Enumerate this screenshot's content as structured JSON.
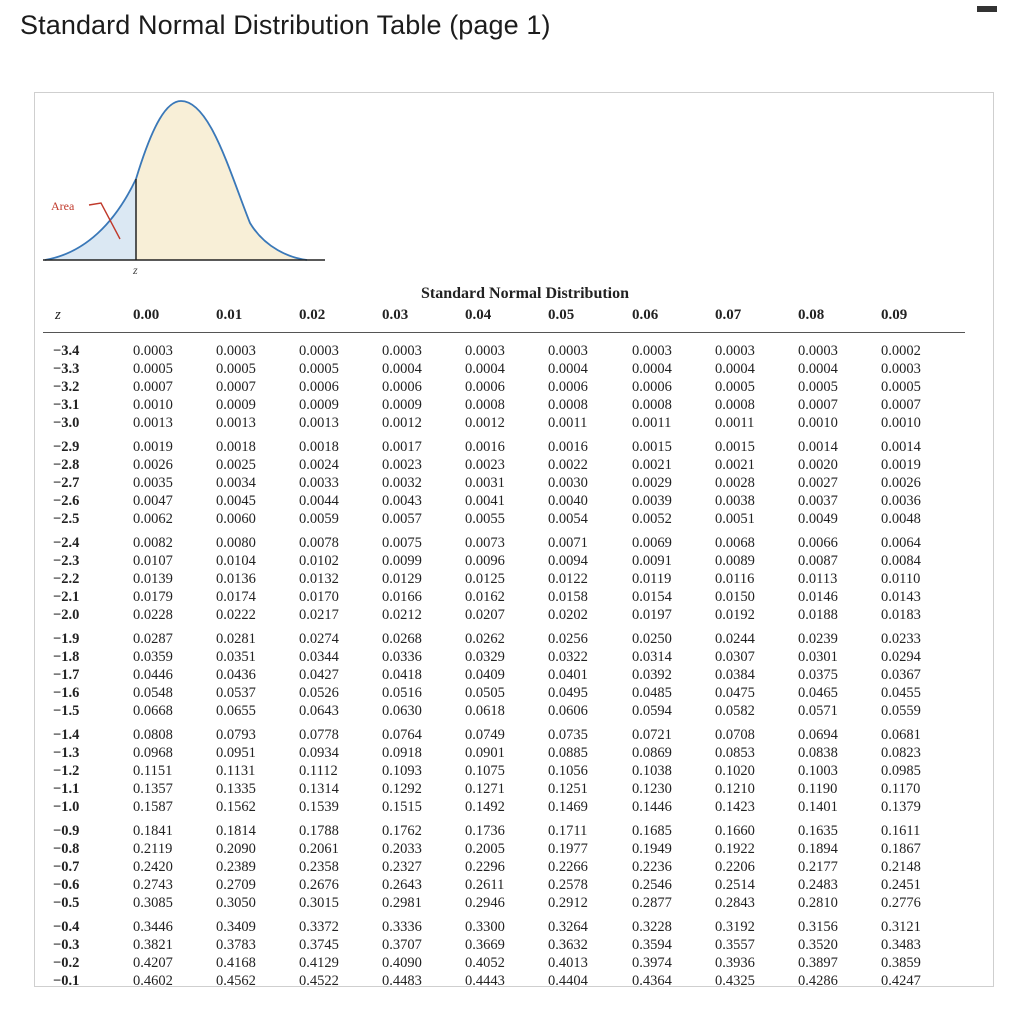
{
  "page": {
    "title": "Standard Normal Distribution Table (page 1)"
  },
  "figure": {
    "area_label": "Area",
    "z_label": "z"
  },
  "table": {
    "heading": "Standard Normal Distribution",
    "z_header": "z",
    "columns": [
      "0.00",
      "0.01",
      "0.02",
      "0.03",
      "0.04",
      "0.05",
      "0.06",
      "0.07",
      "0.08",
      "0.09"
    ],
    "groups": [
      [
        {
          "z": "−3.4",
          "p": [
            "0.0003",
            "0.0003",
            "0.0003",
            "0.0003",
            "0.0003",
            "0.0003",
            "0.0003",
            "0.0003",
            "0.0003",
            "0.0002"
          ]
        },
        {
          "z": "−3.3",
          "p": [
            "0.0005",
            "0.0005",
            "0.0005",
            "0.0004",
            "0.0004",
            "0.0004",
            "0.0004",
            "0.0004",
            "0.0004",
            "0.0003"
          ]
        },
        {
          "z": "−3.2",
          "p": [
            "0.0007",
            "0.0007",
            "0.0006",
            "0.0006",
            "0.0006",
            "0.0006",
            "0.0006",
            "0.0005",
            "0.0005",
            "0.0005"
          ]
        },
        {
          "z": "−3.1",
          "p": [
            "0.0010",
            "0.0009",
            "0.0009",
            "0.0009",
            "0.0008",
            "0.0008",
            "0.0008",
            "0.0008",
            "0.0007",
            "0.0007"
          ]
        },
        {
          "z": "−3.0",
          "p": [
            "0.0013",
            "0.0013",
            "0.0013",
            "0.0012",
            "0.0012",
            "0.0011",
            "0.0011",
            "0.0011",
            "0.0010",
            "0.0010"
          ]
        }
      ],
      [
        {
          "z": "−2.9",
          "p": [
            "0.0019",
            "0.0018",
            "0.0018",
            "0.0017",
            "0.0016",
            "0.0016",
            "0.0015",
            "0.0015",
            "0.0014",
            "0.0014"
          ]
        },
        {
          "z": "−2.8",
          "p": [
            "0.0026",
            "0.0025",
            "0.0024",
            "0.0023",
            "0.0023",
            "0.0022",
            "0.0021",
            "0.0021",
            "0.0020",
            "0.0019"
          ]
        },
        {
          "z": "−2.7",
          "p": [
            "0.0035",
            "0.0034",
            "0.0033",
            "0.0032",
            "0.0031",
            "0.0030",
            "0.0029",
            "0.0028",
            "0.0027",
            "0.0026"
          ]
        },
        {
          "z": "−2.6",
          "p": [
            "0.0047",
            "0.0045",
            "0.0044",
            "0.0043",
            "0.0041",
            "0.0040",
            "0.0039",
            "0.0038",
            "0.0037",
            "0.0036"
          ]
        },
        {
          "z": "−2.5",
          "p": [
            "0.0062",
            "0.0060",
            "0.0059",
            "0.0057",
            "0.0055",
            "0.0054",
            "0.0052",
            "0.0051",
            "0.0049",
            "0.0048"
          ]
        }
      ],
      [
        {
          "z": "−2.4",
          "p": [
            "0.0082",
            "0.0080",
            "0.0078",
            "0.0075",
            "0.0073",
            "0.0071",
            "0.0069",
            "0.0068",
            "0.0066",
            "0.0064"
          ]
        },
        {
          "z": "−2.3",
          "p": [
            "0.0107",
            "0.0104",
            "0.0102",
            "0.0099",
            "0.0096",
            "0.0094",
            "0.0091",
            "0.0089",
            "0.0087",
            "0.0084"
          ]
        },
        {
          "z": "−2.2",
          "p": [
            "0.0139",
            "0.0136",
            "0.0132",
            "0.0129",
            "0.0125",
            "0.0122",
            "0.0119",
            "0.0116",
            "0.0113",
            "0.0110"
          ]
        },
        {
          "z": "−2.1",
          "p": [
            "0.0179",
            "0.0174",
            "0.0170",
            "0.0166",
            "0.0162",
            "0.0158",
            "0.0154",
            "0.0150",
            "0.0146",
            "0.0143"
          ]
        },
        {
          "z": "−2.0",
          "p": [
            "0.0228",
            "0.0222",
            "0.0217",
            "0.0212",
            "0.0207",
            "0.0202",
            "0.0197",
            "0.0192",
            "0.0188",
            "0.0183"
          ]
        }
      ],
      [
        {
          "z": "−1.9",
          "p": [
            "0.0287",
            "0.0281",
            "0.0274",
            "0.0268",
            "0.0262",
            "0.0256",
            "0.0250",
            "0.0244",
            "0.0239",
            "0.0233"
          ]
        },
        {
          "z": "−1.8",
          "p": [
            "0.0359",
            "0.0351",
            "0.0344",
            "0.0336",
            "0.0329",
            "0.0322",
            "0.0314",
            "0.0307",
            "0.0301",
            "0.0294"
          ]
        },
        {
          "z": "−1.7",
          "p": [
            "0.0446",
            "0.0436",
            "0.0427",
            "0.0418",
            "0.0409",
            "0.0401",
            "0.0392",
            "0.0384",
            "0.0375",
            "0.0367"
          ]
        },
        {
          "z": "−1.6",
          "p": [
            "0.0548",
            "0.0537",
            "0.0526",
            "0.0516",
            "0.0505",
            "0.0495",
            "0.0485",
            "0.0475",
            "0.0465",
            "0.0455"
          ]
        },
        {
          "z": "−1.5",
          "p": [
            "0.0668",
            "0.0655",
            "0.0643",
            "0.0630",
            "0.0618",
            "0.0606",
            "0.0594",
            "0.0582",
            "0.0571",
            "0.0559"
          ]
        }
      ],
      [
        {
          "z": "−1.4",
          "p": [
            "0.0808",
            "0.0793",
            "0.0778",
            "0.0764",
            "0.0749",
            "0.0735",
            "0.0721",
            "0.0708",
            "0.0694",
            "0.0681"
          ]
        },
        {
          "z": "−1.3",
          "p": [
            "0.0968",
            "0.0951",
            "0.0934",
            "0.0918",
            "0.0901",
            "0.0885",
            "0.0869",
            "0.0853",
            "0.0838",
            "0.0823"
          ]
        },
        {
          "z": "−1.2",
          "p": [
            "0.1151",
            "0.1131",
            "0.1112",
            "0.1093",
            "0.1075",
            "0.1056",
            "0.1038",
            "0.1020",
            "0.1003",
            "0.0985"
          ]
        },
        {
          "z": "−1.1",
          "p": [
            "0.1357",
            "0.1335",
            "0.1314",
            "0.1292",
            "0.1271",
            "0.1251",
            "0.1230",
            "0.1210",
            "0.1190",
            "0.1170"
          ]
        },
        {
          "z": "−1.0",
          "p": [
            "0.1587",
            "0.1562",
            "0.1539",
            "0.1515",
            "0.1492",
            "0.1469",
            "0.1446",
            "0.1423",
            "0.1401",
            "0.1379"
          ]
        }
      ],
      [
        {
          "z": "−0.9",
          "p": [
            "0.1841",
            "0.1814",
            "0.1788",
            "0.1762",
            "0.1736",
            "0.1711",
            "0.1685",
            "0.1660",
            "0.1635",
            "0.1611"
          ]
        },
        {
          "z": "−0.8",
          "p": [
            "0.2119",
            "0.2090",
            "0.2061",
            "0.2033",
            "0.2005",
            "0.1977",
            "0.1949",
            "0.1922",
            "0.1894",
            "0.1867"
          ]
        },
        {
          "z": "−0.7",
          "p": [
            "0.2420",
            "0.2389",
            "0.2358",
            "0.2327",
            "0.2296",
            "0.2266",
            "0.2236",
            "0.2206",
            "0.2177",
            "0.2148"
          ]
        },
        {
          "z": "−0.6",
          "p": [
            "0.2743",
            "0.2709",
            "0.2676",
            "0.2643",
            "0.2611",
            "0.2578",
            "0.2546",
            "0.2514",
            "0.2483",
            "0.2451"
          ]
        },
        {
          "z": "−0.5",
          "p": [
            "0.3085",
            "0.3050",
            "0.3015",
            "0.2981",
            "0.2946",
            "0.2912",
            "0.2877",
            "0.2843",
            "0.2810",
            "0.2776"
          ]
        }
      ],
      [
        {
          "z": "−0.4",
          "p": [
            "0.3446",
            "0.3409",
            "0.3372",
            "0.3336",
            "0.3300",
            "0.3264",
            "0.3228",
            "0.3192",
            "0.3156",
            "0.3121"
          ]
        },
        {
          "z": "−0.3",
          "p": [
            "0.3821",
            "0.3783",
            "0.3745",
            "0.3707",
            "0.3669",
            "0.3632",
            "0.3594",
            "0.3557",
            "0.3520",
            "0.3483"
          ]
        },
        {
          "z": "−0.2",
          "p": [
            "0.4207",
            "0.4168",
            "0.4129",
            "0.4090",
            "0.4052",
            "0.4013",
            "0.3974",
            "0.3936",
            "0.3897",
            "0.3859"
          ]
        },
        {
          "z": "−0.1",
          "p": [
            "0.4602",
            "0.4562",
            "0.4522",
            "0.4483",
            "0.4443",
            "0.4404",
            "0.4364",
            "0.4325",
            "0.4286",
            "0.4247"
          ]
        }
      ]
    ]
  }
}
